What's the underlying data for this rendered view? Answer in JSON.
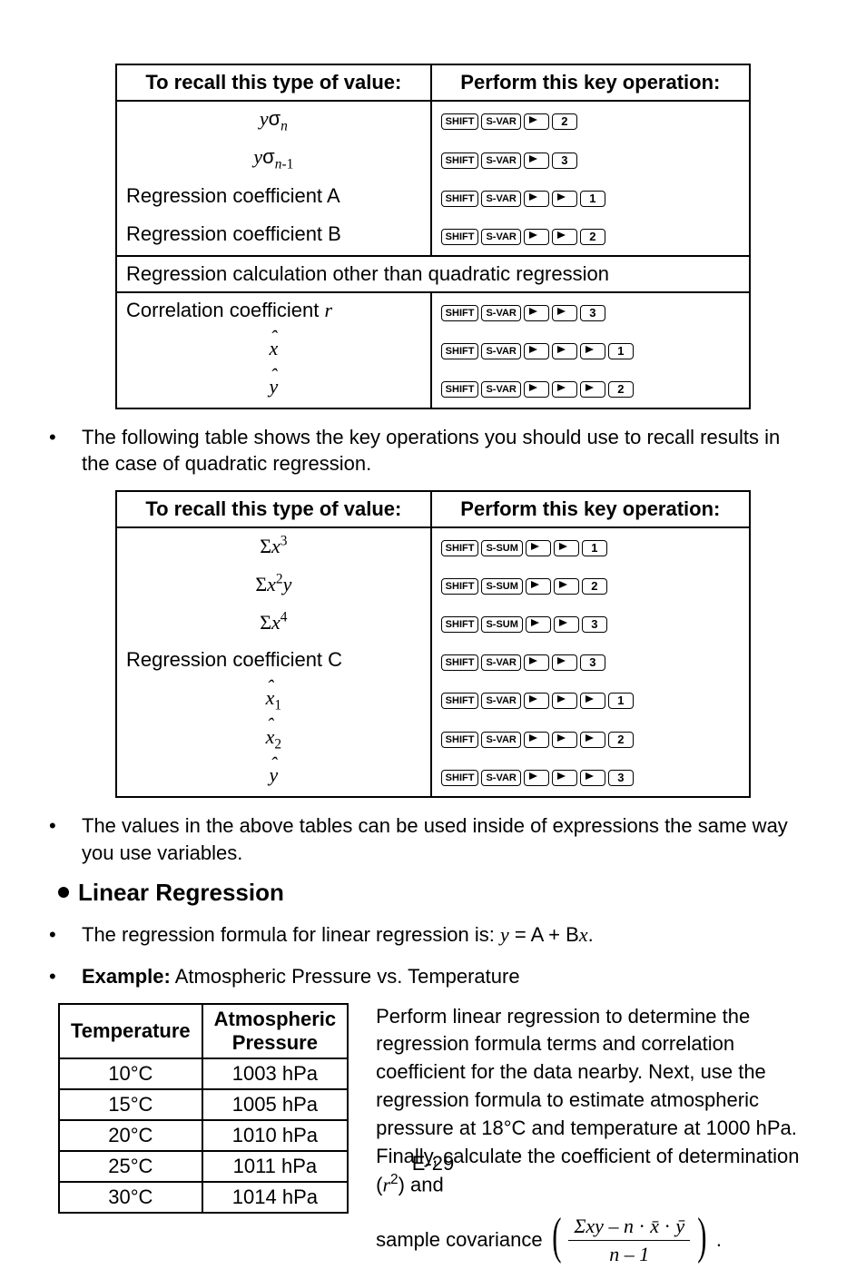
{
  "table1": {
    "headers": [
      "To recall this type of value:",
      "Perform this key operation:"
    ],
    "rows": [
      {
        "label_html": "<span class='ital'>y</span>σ<span class='math-sub'>n</span>",
        "left_align": false,
        "keys": [
          "SHIFT",
          "S-VAR",
          "ARROW",
          "2"
        ]
      },
      {
        "label_html": "<span class='ital'>y</span>σ<span class='math-sub'>n</span><span class='math-sub' style='font-style:normal'>-1</span>",
        "left_align": false,
        "keys": [
          "SHIFT",
          "S-VAR",
          "ARROW",
          "3"
        ]
      },
      {
        "label_html": "Regression coefficient A",
        "left_align": true,
        "keys": [
          "SHIFT",
          "S-VAR",
          "ARROW",
          "ARROW",
          "1"
        ]
      },
      {
        "label_html": "Regression coefficient B",
        "left_align": true,
        "keys": [
          "SHIFT",
          "S-VAR",
          "ARROW",
          "ARROW",
          "2"
        ]
      }
    ],
    "span_row": "Regression calculation other than quadratic regression",
    "rows2": [
      {
        "label_html": "Correlation coefficient <span class='ital'>r</span>",
        "left_align": true,
        "keys": [
          "SHIFT",
          "S-VAR",
          "ARROW",
          "ARROW",
          "3"
        ]
      },
      {
        "label_html": "<span class='serif ital hat'>x</span>",
        "left_align": false,
        "keys": [
          "SHIFT",
          "S-VAR",
          "ARROW",
          "ARROW",
          "ARROW",
          "1"
        ]
      },
      {
        "label_html": "<span class='serif ital hat'>y</span>",
        "left_align": false,
        "keys": [
          "SHIFT",
          "S-VAR",
          "ARROW",
          "ARROW",
          "ARROW",
          "2"
        ]
      }
    ]
  },
  "para1": "The following table shows the key operations you should use to recall results in the case of quadratic regression.",
  "table2": {
    "headers": [
      "To recall this type of value:",
      "Perform this key operation:"
    ],
    "rows": [
      {
        "label_html": "<span class='serif'>Σ<span class='ital'>x</span><span class='math-sup'>3</span></span>",
        "left_align": false,
        "keys": [
          "SHIFT",
          "S-SUM",
          "ARROW",
          "ARROW",
          "1"
        ]
      },
      {
        "label_html": "<span class='serif'>Σ<span class='ital'>x</span><span class='math-sup'>2</span><span class='ital'>y</span></span>",
        "left_align": false,
        "keys": [
          "SHIFT",
          "S-SUM",
          "ARROW",
          "ARROW",
          "2"
        ]
      },
      {
        "label_html": "<span class='serif'>Σ<span class='ital'>x</span><span class='math-sup'>4</span></span>",
        "left_align": false,
        "keys": [
          "SHIFT",
          "S-SUM",
          "ARROW",
          "ARROW",
          "3"
        ]
      },
      {
        "label_html": "Regression coefficient C",
        "left_align": true,
        "keys": [
          "SHIFT",
          "S-VAR",
          "ARROW",
          "ARROW",
          "3"
        ]
      },
      {
        "label_html": "<span class='serif ital hat'>x</span><span class='math-sub' style='font-style:normal'>1</span>",
        "left_align": false,
        "keys": [
          "SHIFT",
          "S-VAR",
          "ARROW",
          "ARROW",
          "ARROW",
          "1"
        ]
      },
      {
        "label_html": "<span class='serif ital hat'>x</span><span class='math-sub' style='font-style:normal'>2</span>",
        "left_align": false,
        "keys": [
          "SHIFT",
          "S-VAR",
          "ARROW",
          "ARROW",
          "ARROW",
          "2"
        ]
      },
      {
        "label_html": "<span class='serif ital hat'>y</span>",
        "left_align": false,
        "keys": [
          "SHIFT",
          "S-VAR",
          "ARROW",
          "ARROW",
          "ARROW",
          "3"
        ]
      }
    ]
  },
  "para2": "The values in the above tables can be used inside of expressions the same way you use variables.",
  "heading": "Linear Regression",
  "formula_line_pre": "The regression formula for linear regression is: ",
  "formula_html": "<span class='ital'>y</span> = A + B<span class='ital'>x</span>.",
  "example_label": "Example:",
  "example_text": " Atmospheric Pressure vs. Temperature",
  "data_table": {
    "headers": [
      "Temperature",
      "Atmospheric Pressure"
    ],
    "rows": [
      [
        "10°C",
        "1003 hPa"
      ],
      [
        "15°C",
        "1005 hPa"
      ],
      [
        "20°C",
        "1010 hPa"
      ],
      [
        "25°C",
        "1011 hPa"
      ],
      [
        "30°C",
        "1014 hPa"
      ]
    ]
  },
  "rhs_para": "Perform linear regression to determine the regression formula terms and correlation coefficient for the data nearby. Next, use the regression formula to estimate atmospheric pressure at 18°C and temperature at 1000 hPa. Finally, calculate the coefficient of determination (",
  "rhs_para_tail": ") and",
  "cov_label": "sample covariance",
  "cov_numer_html": "Σ<span class='ital'>xy</span> – <span class='ital'>n</span> <span style='font-style:normal'>·</span> <span class='ital'>x̄</span> <span style='font-style:normal'>·</span> <span class='ital'>ȳ</span>",
  "cov_denom_html": "<span class='ital'>n</span> – 1",
  "page_number": "E-29"
}
